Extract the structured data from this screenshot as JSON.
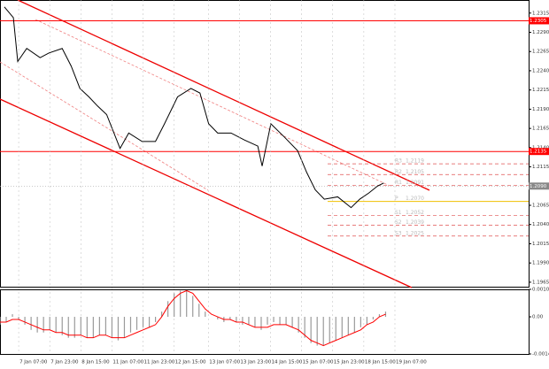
{
  "chart_data": [
    {
      "type": "line",
      "color": "#000000",
      "x": [
        1.4,
        4.3,
        5.7,
        8.6,
        12.9,
        15.7,
        20,
        22.9,
        25.7,
        28.6,
        31.4,
        34.3,
        38.6,
        41.4,
        45.7,
        50,
        52.9,
        57.1,
        61.4,
        64.3,
        67.1,
        70,
        74.3,
        78.6,
        82.9,
        84.3,
        87.1,
        91.4,
        95.7,
        98.6,
        101.4,
        104.3,
        108.6,
        112.9,
        115.7,
        118.6,
        121.4,
        123.4
      ],
      "values": [
        1.2323,
        1.2309,
        1.2252,
        1.2269,
        1.2257,
        1.2263,
        1.2269,
        1.2246,
        1.2217,
        1.2206,
        1.2194,
        1.2183,
        1.2139,
        1.2159,
        1.2148,
        1.2148,
        1.2171,
        1.2206,
        1.2217,
        1.2211,
        1.2171,
        1.2159,
        1.2159,
        1.215,
        1.2142,
        1.2116,
        1.2171,
        1.2154,
        1.2136,
        1.2108,
        1.2085,
        1.2073,
        1.2076,
        1.2062,
        1.2073,
        1.2081,
        1.209,
        1.2094
      ],
      "xlim": [
        0,
        170
      ],
      "ylim": [
        1.1958,
        1.2332
      ],
      "yticks": [
        1.2315,
        {
          "value": 1.229,
          "label": "1.2290"
        },
        1.2265,
        {
          "value": 1.224,
          "label": "1.2240"
        },
        1.2215,
        {
          "value": 1.219,
          "label": "1.2190"
        },
        1.2165,
        {
          "value": 1.214,
          "label": "1.2140"
        },
        1.2115,
        {
          "value": 1.209,
          "label": "1.2090"
        },
        1.2065,
        {
          "value": 1.204,
          "label": "1.2040"
        },
        1.2015,
        {
          "value": 1.199,
          "label": "1.1990"
        },
        1.1965
      ],
      "levels": [
        1.2305,
        1.2135
      ],
      "level_color": "#ff0000",
      "last_price": {
        "value": 1.209,
        "label": "1.2090"
      },
      "pivots": [
        {
          "name": "R3",
          "value": 1.2119
        },
        {
          "name": "R2",
          "value": 1.2105
        },
        {
          "name": "R1",
          "value": 1.2091
        },
        {
          "name": "P",
          "value": {
            "value": 1.207,
            "label": "1.2070"
          }
        },
        {
          "name": "S1",
          "value": 1.2052
        },
        {
          "name": "S2",
          "value": 1.2039
        },
        {
          "name": "S3",
          "value": 1.2025
        }
      ]
    },
    {
      "type": "macd",
      "x": [
        0,
        2,
        4,
        6,
        8,
        10,
        12,
        14,
        16,
        18,
        20,
        22,
        24,
        26,
        28,
        30,
        32,
        34,
        36,
        38,
        40,
        42,
        44,
        46,
        48,
        50,
        52,
        54,
        56,
        58,
        60,
        62,
        64,
        66,
        68,
        70,
        72,
        74,
        76,
        78,
        80,
        82,
        84,
        86,
        88,
        90,
        92,
        94,
        96,
        98,
        100,
        102,
        104,
        106,
        108,
        110,
        112,
        114,
        116,
        118,
        120,
        122,
        124
      ],
      "series": [
        {
          "name": "MACD",
          "color": "#9a9a9a",
          "values": [
            -0.0003,
            -0.0002,
            0.0001,
            -0.0001,
            -0.0003,
            -0.0005,
            -0.0006,
            -0.0006,
            -0.0005,
            -0.0006,
            -0.0007,
            -0.0008,
            -0.0008,
            -0.0007,
            -0.0008,
            -0.0008,
            -0.0007,
            -0.0007,
            -0.0008,
            -0.0009,
            -0.0008,
            -0.0006,
            -0.0005,
            -0.0004,
            -0.0004,
            -0.0002,
            0.0002,
            0.0006,
            0.0009,
            0.001,
            0.001,
            0.0008,
            0.0005,
            0.0002,
            0,
            -0.0001,
            -0.0002,
            -0.0001,
            -0.0002,
            -0.0003,
            -0.0003,
            -0.0004,
            -0.0005,
            -0.0003,
            -0.0002,
            -0.0003,
            -0.0003,
            -0.0004,
            -0.0006,
            -0.0008,
            -0.001,
            -0.0011,
            -0.0011,
            -0.001,
            -0.0009,
            -0.0008,
            -0.0007,
            -0.0006,
            -0.0004,
            -0.0003,
            -0.0001,
            0.0001,
            0.0002
          ]
        },
        {
          "name": "Signal",
          "color": "#ff0000",
          "values": [
            -0.0002,
            -0.0002,
            -0.0001,
            -0.0001,
            -0.0002,
            -0.0003,
            -0.0004,
            -0.0005,
            -0.0005,
            -0.0006,
            -0.0006,
            -0.0007,
            -0.0007,
            -0.0007,
            -0.0008,
            -0.0008,
            -0.0007,
            -0.0007,
            -0.0008,
            -0.0008,
            -0.0008,
            -0.0007,
            -0.0006,
            -0.0005,
            -0.0004,
            -0.0003,
            0,
            0.0004,
            0.0007,
            0.0009,
            0.001,
            0.0009,
            0.0006,
            0.0003,
            0.0001,
            0,
            -0.0001,
            -0.0001,
            -0.0002,
            -0.0002,
            -0.0003,
            -0.0004,
            -0.0004,
            -0.0004,
            -0.0003,
            -0.0003,
            -0.0003,
            -0.0004,
            -0.0005,
            -0.0007,
            -0.0009,
            -0.001,
            -0.0011,
            -0.001,
            -0.0009,
            -0.0008,
            -0.0007,
            -0.0006,
            -0.0005,
            -0.0003,
            -0.0002,
            0,
            0.0001
          ]
        }
      ],
      "xlim": [
        0,
        170
      ],
      "ylim": [
        -0.00142,
        0.00105
      ],
      "yticks": [
        0.00105,
        {
          "value": 0,
          "label": "0.00"
        },
        -0.00142
      ],
      "xticks": [
        {
          "value": 6,
          "label": "7 Jan 07:00"
        },
        {
          "value": 16,
          "label": "7 Jan 23:00"
        },
        {
          "value": 26,
          "label": "8 Jan 15:00"
        },
        {
          "value": 36,
          "label": "11 Jan 07:00"
        },
        {
          "value": 46,
          "label": "11 Jan 23:00"
        },
        {
          "value": 56,
          "label": "12 Jan 15:00"
        },
        {
          "value": 67,
          "label": "13 Jan 07:00"
        },
        {
          "value": 77,
          "label": "13 Jan 23:00"
        },
        {
          "value": 87,
          "label": "14 Jan 15:00"
        },
        {
          "value": 97,
          "label": "15 Jan 07:00"
        },
        {
          "value": 107,
          "label": "15 Jan 23:00"
        },
        {
          "value": 117,
          "label": "18 Jan 15:00"
        },
        {
          "value": 127,
          "label": "19 Jan 07:00"
        }
      ]
    }
  ]
}
